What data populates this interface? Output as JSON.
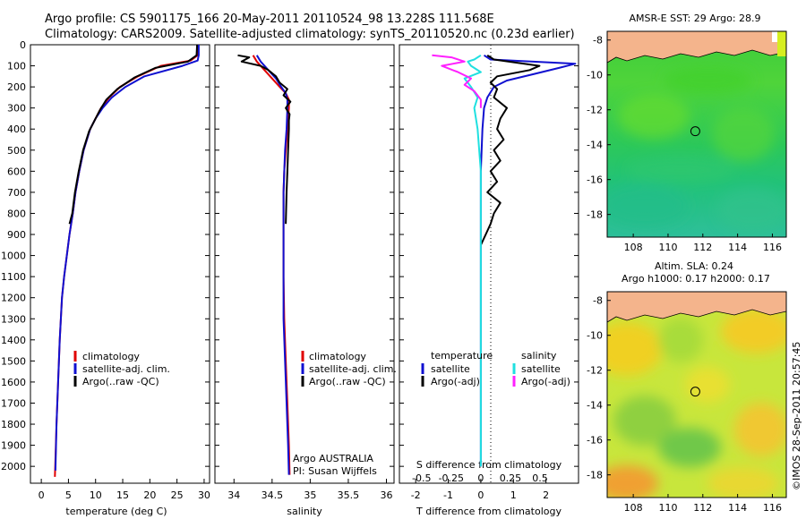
{
  "header": {
    "line1": "Argo profile: CS 5901175_166 20-May-2011 20110524_98 13.228S 111.568E",
    "line2": "Climatology: CARS2009. Satellite-adjusted climatology: synTS_20110520.nc (0.23d earlier)"
  },
  "colors": {
    "climatology": "#e00000",
    "satellite": "#1010d0",
    "argo": "#000000",
    "satellite_salinity": "#20e0e0",
    "argo_salinity": "#ff20ff",
    "land": "#f4b48c"
  },
  "chart_data": [
    {
      "type": "line",
      "panel": "temperature",
      "xlabel": "temperature (deg C)",
      "xlim": [
        -2,
        31
      ],
      "xticks": [
        "0",
        "5",
        "10",
        "15",
        "20",
        "25",
        "30"
      ],
      "ylim": [
        0,
        2080
      ],
      "yticks": [
        "0",
        "100",
        "200",
        "300",
        "400",
        "500",
        "600",
        "700",
        "800",
        "900",
        "1000",
        "1100",
        "1200",
        "1300",
        "1400",
        "1500",
        "1600",
        "1700",
        "1800",
        "1900",
        "2000"
      ],
      "legend": [
        "climatology",
        "satellite-adj. clim.",
        "Argo(..raw -QC)"
      ],
      "series": [
        {
          "name": "climatology",
          "color": "#e00000",
          "x": [
            28.9,
            28.8,
            27.5,
            22,
            17.8,
            14.5,
            12.5,
            11,
            10,
            9,
            7.8,
            7,
            6.3,
            5.8,
            5.2,
            4.7,
            4.2,
            3.8,
            3.4,
            3.1,
            2.8,
            2.5
          ],
          "y": [
            0,
            50,
            75,
            100,
            150,
            200,
            250,
            300,
            350,
            400,
            500,
            600,
            700,
            800,
            900,
            1000,
            1100,
            1200,
            1400,
            1600,
            1800,
            2050
          ]
        },
        {
          "name": "satellite-adj. clim.",
          "color": "#1010d0",
          "x": [
            29,
            29,
            28.8,
            26,
            19,
            15.5,
            13,
            11.3,
            10,
            9,
            7.8,
            7,
            6.3,
            5.8,
            5.2,
            4.7,
            4.2,
            3.8,
            3.4,
            3.1,
            2.8,
            2.6
          ],
          "y": [
            0,
            50,
            75,
            100,
            150,
            200,
            250,
            300,
            350,
            400,
            500,
            600,
            700,
            800,
            900,
            1000,
            1100,
            1200,
            1400,
            1600,
            1800,
            2020
          ]
        },
        {
          "name": "Argo(..raw -QC)",
          "color": "#000000",
          "x": [
            28.7,
            28.6,
            27,
            21,
            17.2,
            14,
            12,
            10.8,
            9.8,
            8.8,
            7.7,
            6.9,
            6.2,
            5.7,
            5.2
          ],
          "y": [
            0,
            50,
            80,
            110,
            155,
            210,
            260,
            310,
            360,
            410,
            500,
            600,
            700,
            800,
            850
          ]
        }
      ]
    },
    {
      "type": "line",
      "panel": "salinity",
      "xlabel": "salinity",
      "xlim": [
        33.75,
        36.1
      ],
      "xticks": [
        "34",
        "34.5",
        "35",
        "35.5",
        "36"
      ],
      "ylim": [
        0,
        2080
      ],
      "legend": [
        "climatology",
        "satellite-adj. clim.",
        "Argo(..raw -QC)"
      ],
      "annotations": [
        "Argo AUSTRALIA",
        "PI: Susan Wijffels"
      ],
      "series": [
        {
          "name": "climatology",
          "color": "#e00000",
          "x": [
            34.25,
            34.3,
            34.4,
            34.5,
            34.6,
            34.68,
            34.72,
            34.72,
            34.7,
            34.68,
            34.66,
            34.65,
            34.65,
            34.65,
            34.66,
            34.68,
            34.7,
            34.72,
            34.73
          ],
          "y": [
            50,
            80,
            120,
            160,
            200,
            230,
            260,
            300,
            400,
            500,
            600,
            700,
            900,
            1100,
            1300,
            1500,
            1700,
            1900,
            2040
          ]
        },
        {
          "name": "satellite-adj. clim.",
          "color": "#1010d0",
          "x": [
            34.3,
            34.35,
            34.45,
            34.55,
            34.62,
            34.68,
            34.7,
            34.7,
            34.69,
            34.67,
            34.66,
            34.65,
            34.65,
            34.65,
            34.65,
            34.67,
            34.69,
            34.71,
            34.72
          ],
          "y": [
            50,
            80,
            120,
            160,
            200,
            230,
            260,
            300,
            400,
            500,
            600,
            700,
            900,
            1100,
            1300,
            1500,
            1700,
            1900,
            2040
          ]
        },
        {
          "name": "Argo(..raw -QC)",
          "color": "#000000",
          "x": [
            34.05,
            34.2,
            34.1,
            34.35,
            34.45,
            34.55,
            34.6,
            34.7,
            34.65,
            34.74,
            34.68,
            34.73,
            34.72,
            34.72,
            34.71,
            34.7,
            34.69,
            34.68
          ],
          "y": [
            50,
            60,
            80,
            100,
            120,
            150,
            180,
            210,
            240,
            270,
            300,
            330,
            360,
            400,
            500,
            600,
            700,
            850
          ]
        }
      ]
    },
    {
      "type": "line",
      "panel": "difference",
      "xlabel_top": "S difference from climatology",
      "xticks_top": [
        "-0.5",
        "-0.25",
        "0",
        "0.25",
        "0.5"
      ],
      "xlabel": "T difference from climatology",
      "xlim": [
        -2.5,
        3
      ],
      "xticks": [
        "-2",
        "-1",
        "0",
        "1",
        "2"
      ],
      "ylim": [
        0,
        2080
      ],
      "legend_temperature": [
        "temperature",
        "satellite",
        "Argo(-adj)"
      ],
      "legend_salinity": [
        "salinity",
        "satellite",
        "Argo(-adj)"
      ],
      "series": [
        {
          "name": "satellite",
          "color": "#1010d0",
          "x": [
            0.1,
            0.3,
            2.9,
            2.4,
            1.6,
            0.8,
            0.4,
            0.2,
            0.1,
            0.05,
            0,
            0,
            0,
            0,
            0
          ],
          "y": [
            50,
            70,
            90,
            110,
            140,
            170,
            200,
            250,
            300,
            400,
            600,
            900,
            1200,
            1600,
            2000
          ]
        },
        {
          "name": "Argo(-adj)",
          "color": "#000000",
          "x": [
            0.2,
            0.4,
            1.8,
            1.5,
            0.5,
            0.3,
            0.5,
            0.4,
            0.8,
            0.6,
            0.5,
            0.7,
            0.4,
            0.6,
            0.3,
            0.5,
            0.2,
            0.6,
            0.4,
            0.3,
            0.15,
            0
          ],
          "y": [
            50,
            70,
            100,
            120,
            150,
            180,
            210,
            250,
            300,
            350,
            400,
            450,
            500,
            550,
            600,
            650,
            700,
            750,
            800,
            850,
            900,
            950
          ]
        },
        {
          "name": "satellite",
          "color": "#20e0e0",
          "x": [
            0,
            -0.2,
            -0.4,
            -0.3,
            0,
            -0.5,
            -0.3,
            -0.1,
            -0.2,
            -0.1,
            0,
            0,
            0,
            0
          ],
          "y": [
            50,
            70,
            80,
            100,
            130,
            160,
            200,
            250,
            300,
            400,
            600,
            900,
            1300,
            2000
          ]
        },
        {
          "name": "Argo(-adj)",
          "color": "#ff20ff",
          "x": [
            -1.5,
            -0.9,
            -0.5,
            -1.2,
            -0.7,
            -0.3,
            -0.5,
            -0.2,
            0,
            0
          ],
          "y": [
            50,
            60,
            80,
            100,
            130,
            160,
            190,
            220,
            260,
            300
          ]
        }
      ]
    },
    {
      "type": "heatmap",
      "panel": "sst_map",
      "title": "AMSR-E SST: 29 Argo: 28.9",
      "xlim": [
        106.5,
        116.8
      ],
      "ylim": [
        -19.3,
        -7.5
      ],
      "xticks": [
        "108",
        "110",
        "112",
        "114",
        "116"
      ],
      "yticks": [
        "-8",
        "-10",
        "-12",
        "-14",
        "-16",
        "-18"
      ],
      "marker": {
        "lon": 111.568,
        "lat": -13.228
      }
    },
    {
      "type": "heatmap",
      "panel": "sla_map",
      "title": "Altim. SLA: 0.24",
      "subtitle": "Argo h1000: 0.17 h2000: 0.17",
      "xlim": [
        106.5,
        116.8
      ],
      "ylim": [
        -19.3,
        -7.5
      ],
      "xticks": [
        "108",
        "110",
        "112",
        "114",
        "116"
      ],
      "yticks": [
        "-8",
        "-10",
        "-12",
        "-14",
        "-16",
        "-18"
      ],
      "marker": {
        "lon": 111.568,
        "lat": -13.228
      }
    }
  ],
  "credit": "©IMOS 28-Sep-2011 20:57:45"
}
